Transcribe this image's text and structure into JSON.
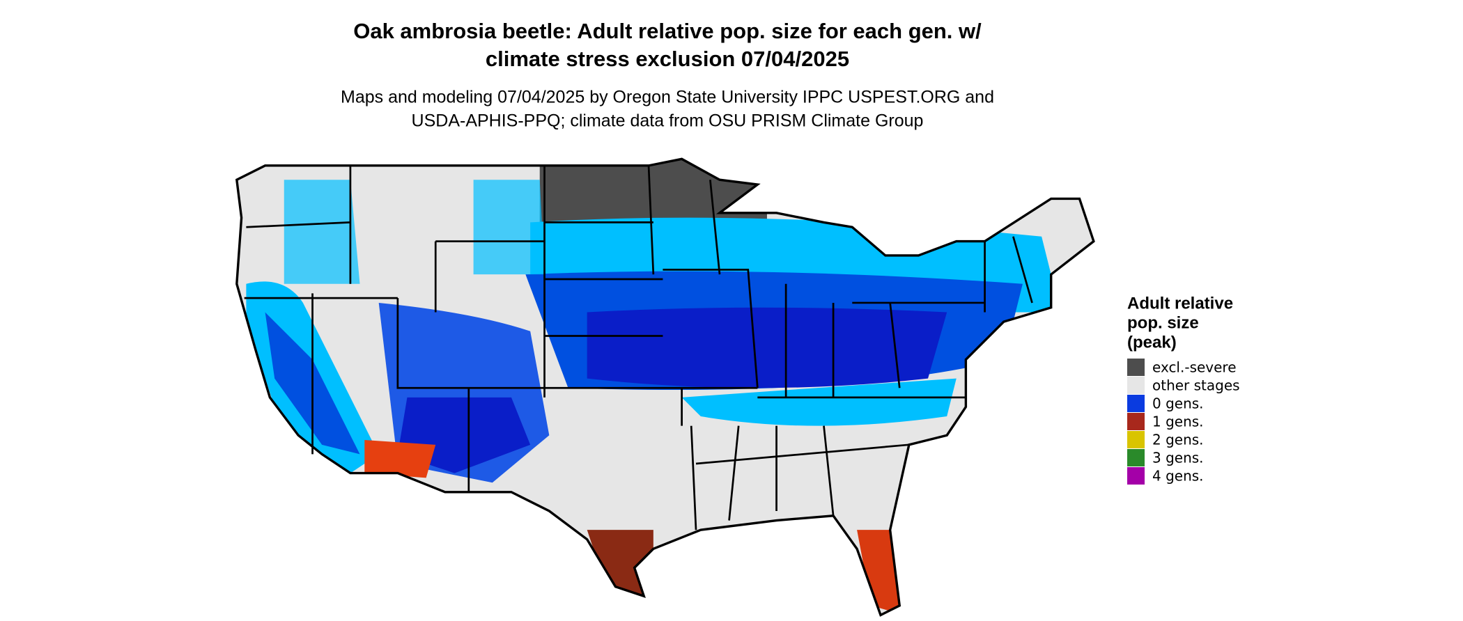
{
  "title_lines": [
    "Oak ambrosia beetle: Adult relative pop. size for each gen. w/",
    "climate stress exclusion 07/04/2025"
  ],
  "subtitle_lines": [
    "Maps and modeling 07/04/2025 by Oregon State University IPPC USPEST.ORG and",
    "USDA-APHIS-PPQ; climate data from OSU PRISM Climate Group"
  ],
  "legend": {
    "title_lines": [
      "Adult relative",
      "pop. size",
      "(peak)"
    ],
    "items": [
      {
        "label": "excl.-severe",
        "color": "#4d4d4d"
      },
      {
        "label": "other stages",
        "color": "#e6e6e6"
      },
      {
        "label": "0 gens.",
        "color": "#0a3be0"
      },
      {
        "label": "1 gens.",
        "color": "#a8281c"
      },
      {
        "label": "2 gens.",
        "color": "#d9c400"
      },
      {
        "label": "3 gens.",
        "color": "#2a8a2a"
      },
      {
        "label": "4 gens.",
        "color": "#a400a8"
      }
    ]
  }
}
